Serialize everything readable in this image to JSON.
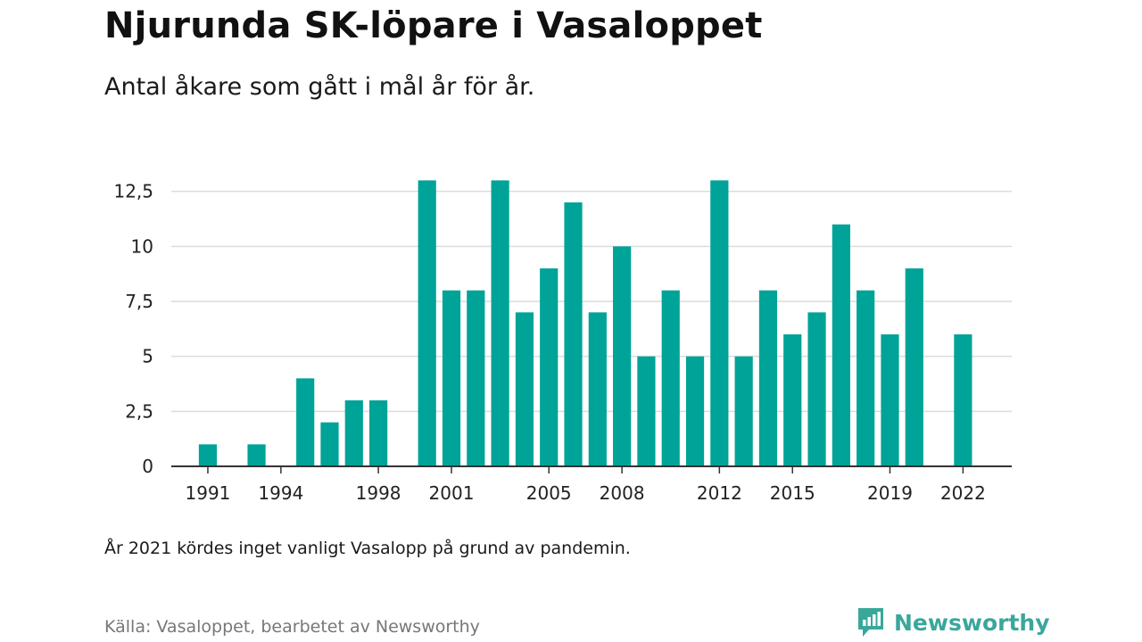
{
  "title": "Njurunda SK-löpare i Vasaloppet",
  "subtitle": "Antal åkare som gått i mål år för år.",
  "note": "År 2021 kördes inget vanligt Vasalopp på grund av pandemin.",
  "source": "Källa: Vasaloppet, bearbetet av Newsworthy",
  "brand": {
    "name": "Newsworthy",
    "icon": "newsworthy-logo-icon",
    "color": "#3aa79b"
  },
  "chart_data": {
    "type": "bar",
    "title": "Njurunda SK-löpare i Vasaloppet",
    "xlabel": "",
    "ylabel": "",
    "bar_color": "#00a398",
    "grid": true,
    "ylim": [
      0,
      13.5
    ],
    "y_ticks": [
      0,
      2.5,
      5,
      7.5,
      10,
      12.5
    ],
    "y_tick_labels": [
      "0",
      "2,5",
      "5",
      "7,5",
      "10",
      "12,5"
    ],
    "x_ticks": [
      1991,
      1994,
      1998,
      2001,
      2005,
      2008,
      2012,
      2015,
      2019,
      2022
    ],
    "x_tick_labels": [
      "1991",
      "1994",
      "1998",
      "2001",
      "2005",
      "2008",
      "2012",
      "2015",
      "2019",
      "2022"
    ],
    "xlim": [
      1989.5,
      2024
    ],
    "x": [
      1991,
      1993,
      1995,
      1996,
      1997,
      1998,
      2000,
      2001,
      2002,
      2003,
      2004,
      2005,
      2006,
      2007,
      2008,
      2009,
      2010,
      2011,
      2012,
      2013,
      2014,
      2015,
      2016,
      2017,
      2018,
      2019,
      2020,
      2022
    ],
    "values": [
      1,
      1,
      4,
      2,
      3,
      3,
      13,
      8,
      8,
      13,
      7,
      9,
      12,
      7,
      10,
      5,
      8,
      5,
      13,
      5,
      8,
      6,
      7,
      11,
      8,
      6,
      9,
      6
    ]
  }
}
